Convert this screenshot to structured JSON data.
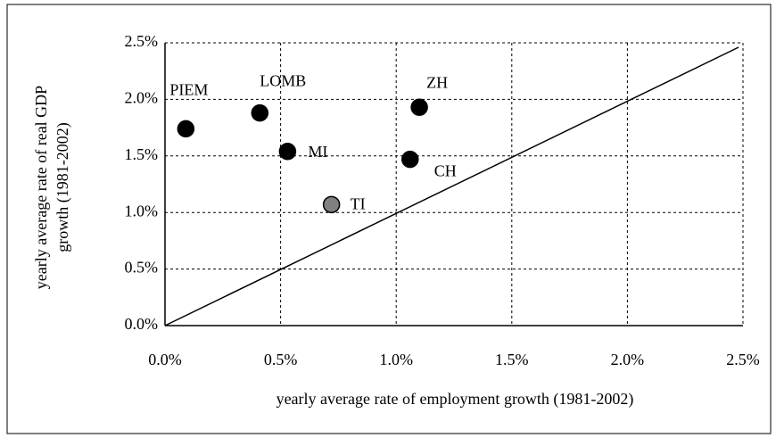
{
  "chart_data": {
    "type": "scatter",
    "xlabel": "yearly average rate of employment growth (1981-2002)",
    "ylabel": [
      "yearly average rate of real GDP",
      "growth (1981-2002)"
    ],
    "xlim": [
      0,
      2.5
    ],
    "ylim": [
      0,
      2.5
    ],
    "xticks": [
      {
        "value": 0,
        "label": "0.0%"
      },
      {
        "value": 0.5,
        "label": "0.5%"
      },
      {
        "value": 1,
        "label": "1.0%"
      },
      {
        "value": 1.5,
        "label": "1.5%"
      },
      {
        "value": 2,
        "label": "2.0%"
      },
      {
        "value": 2.5,
        "label": "2.5%"
      }
    ],
    "yticks": [
      {
        "value": 0,
        "label": "0.0%"
      },
      {
        "value": 0.5,
        "label": "0.5%"
      },
      {
        "value": 1,
        "label": "1.0%"
      },
      {
        "value": 1.5,
        "label": "1.5%"
      },
      {
        "value": 2,
        "label": "2.0%"
      },
      {
        "value": 2.5,
        "label": "2.5%"
      }
    ],
    "grid": true,
    "points": [
      {
        "label": "PIEM",
        "x": 0.09,
        "y": 1.74,
        "color": "#000000"
      },
      {
        "label": "LOMB",
        "x": 0.41,
        "y": 1.88,
        "color": "#000000"
      },
      {
        "label": "MI",
        "x": 0.53,
        "y": 1.54,
        "color": "#000000"
      },
      {
        "label": "TI",
        "x": 0.72,
        "y": 1.07,
        "color": "#808080"
      },
      {
        "label": "CH",
        "x": 1.06,
        "y": 1.47,
        "color": "#000000"
      },
      {
        "label": "ZH",
        "x": 1.1,
        "y": 1.93,
        "color": "#000000"
      }
    ]
  }
}
